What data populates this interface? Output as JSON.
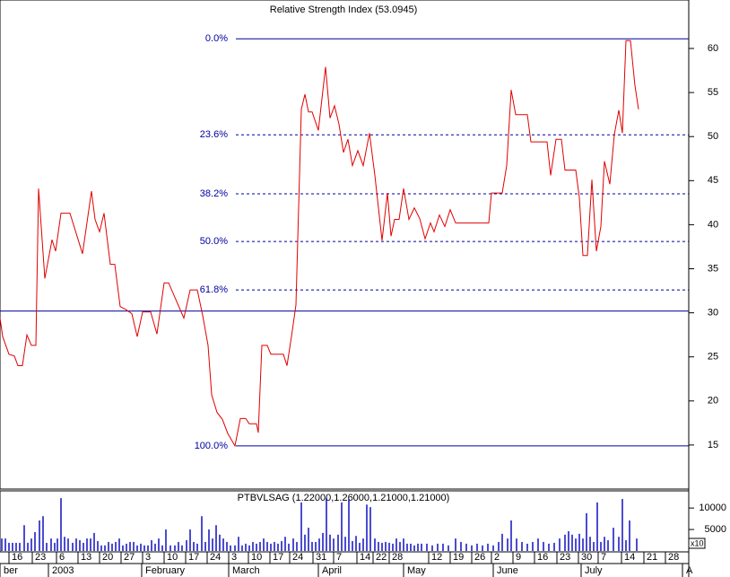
{
  "chart_data": [
    {
      "type": "line",
      "title": "Relative Strength Index (53.0945)",
      "color": "#e00000",
      "xlim": [
        0,
        153.6
      ],
      "ylim": [
        10,
        65.5
      ],
      "yticks": [
        15,
        20,
        25,
        30,
        35,
        40,
        45,
        50,
        55,
        60
      ],
      "x": [
        0,
        0.6,
        2,
        3.2,
        4,
        5,
        6,
        7,
        8,
        8.6,
        10,
        11.6,
        12.4,
        13.6,
        15.6,
        18.4,
        20.4,
        21.2,
        22.2,
        23.2,
        24.6,
        25.6,
        26.8,
        28,
        29.4,
        30.6,
        31.8,
        33.6,
        35,
        36.6,
        37.6,
        41,
        42.4,
        44,
        45.2,
        46.4,
        47.2,
        48.4,
        49.6,
        50.8,
        52.4,
        53.6,
        54.8,
        55.6,
        57.2,
        57.6,
        58.4,
        59.6,
        60.4,
        63.2,
        64,
        65,
        66,
        67.2,
        68,
        68.8,
        69.6,
        71,
        72.6,
        73.6,
        74.6,
        75.6,
        76.6,
        77.6,
        78.6,
        79.8,
        81,
        82.4,
        83.6,
        85.2,
        86.4,
        87.2,
        88,
        89,
        90,
        91.2,
        92.4,
        93.6,
        94.8,
        96,
        96.8,
        98,
        99.2,
        100.4,
        101.6,
        104,
        109,
        109.6,
        112,
        113,
        114,
        115,
        117.6,
        118.4,
        122,
        122.8,
        124,
        125.2,
        126,
        128.4,
        129.2,
        130,
        131,
        132,
        133,
        134,
        134.8,
        136,
        137,
        138,
        138.8,
        139.6,
        140.6,
        141.6,
        142.4
      ],
      "values": [
        29.4,
        27.3,
        25.3,
        25.1,
        24.0,
        24.0,
        27.5,
        26.3,
        26.3,
        44.1,
        33.9,
        38.3,
        37.0,
        41.3,
        41.3,
        36.7,
        43.8,
        40.6,
        39.2,
        41.3,
        35.5,
        35.5,
        30.7,
        30.4,
        29.9,
        27.3,
        30.1,
        30.1,
        27.6,
        33.4,
        33.4,
        29.4,
        32.6,
        32.6,
        29.7,
        26.3,
        20.7,
        18.7,
        17.9,
        16.3,
        14.9,
        18.0,
        18.0,
        17.4,
        17.4,
        16.4,
        26.3,
        26.3,
        25.3,
        25.3,
        24.0,
        27.3,
        30.9,
        53.1,
        54.8,
        52.8,
        52.8,
        50.7,
        57.9,
        52.1,
        53.5,
        51.4,
        48.2,
        49.7,
        46.7,
        48.4,
        46.7,
        50.4,
        45.6,
        38.2,
        43.6,
        38.7,
        40.6,
        40.6,
        44.1,
        40.6,
        41.9,
        40.7,
        38.4,
        40.2,
        39.2,
        41.1,
        39.8,
        41.7,
        40.2,
        40.2,
        40.2,
        43.6,
        43.6,
        46.7,
        55.3,
        52.5,
        52.5,
        49.4,
        49.4,
        45.6,
        49.7,
        49.7,
        46.2,
        46.2,
        43.1,
        36.5,
        36.5,
        45.1,
        37.0,
        39.8,
        47.2,
        44.6,
        50.2,
        53.0,
        50.4,
        60.9,
        60.9,
        55.8,
        53.1
      ],
      "levels": [
        {
          "label": "0.0%",
          "value": 61.1
        },
        {
          "label": "23.6%",
          "value": 50.2
        },
        {
          "label": "38.2%",
          "value": 43.5
        },
        {
          "label": "50.0%",
          "value": 38.1
        },
        {
          "label": "61.8%",
          "value": 32.6
        },
        {
          "label": "100.0%",
          "value": 14.9
        }
      ],
      "level_color": "#0000a0",
      "reference_line": 30.2
    },
    {
      "type": "bar",
      "title": "PTBVLSAG (1.22000,1.26000,1.21000,1.21000)",
      "color": "#1010c0",
      "xlim": [
        0,
        153.6
      ],
      "ylim": [
        0,
        14000
      ],
      "yticks": [
        5000,
        10000
      ],
      "y_unit_label": "x10",
      "x": [
        0.4,
        1.2,
        2,
        2.8,
        3.6,
        4.4,
        5.4,
        6.2,
        7,
        7.8,
        8.8,
        9.6,
        10.4,
        11.4,
        12.2,
        12.8,
        13.6,
        14.4,
        15.2,
        16.2,
        17,
        17.8,
        18.6,
        19.4,
        20.2,
        21,
        21.8,
        22.6,
        23.4,
        24.2,
        25,
        25.8,
        26.6,
        27.4,
        28.2,
        29,
        29.8,
        30.6,
        31.4,
        32.2,
        33,
        33.8,
        34.6,
        35.4,
        36.2,
        37,
        38,
        39,
        39.8,
        40.6,
        41.6,
        42.4,
        43.2,
        44,
        45,
        45.8,
        46.6,
        47.4,
        48.2,
        49,
        49.8,
        50.6,
        51.4,
        52.4,
        53.2,
        54,
        54.8,
        55.6,
        56.4,
        57.2,
        58,
        58.8,
        59.6,
        60.4,
        61.2,
        62,
        62.8,
        63.6,
        64.4,
        65.4,
        66.2,
        67.2,
        68,
        68.8,
        69.6,
        70.4,
        71.2,
        72,
        72.8,
        73.6,
        74.4,
        75.4,
        76.2,
        77,
        77.8,
        78.6,
        79.4,
        80.2,
        81,
        81.8,
        82.6,
        83.6,
        84.4,
        85.2,
        86,
        86.8,
        87.6,
        88.4,
        89.2,
        90,
        90.8,
        91.6,
        92.4,
        93.2,
        94,
        95.2,
        96.4,
        97.6,
        98.8,
        100,
        101.6,
        102.8,
        104,
        105.2,
        106.4,
        107.6,
        108.8,
        110,
        111.2,
        112,
        113.2,
        114,
        115.2,
        116.4,
        117.6,
        118.8,
        120,
        121.2,
        122.4,
        123.6,
        124.8,
        126,
        126.8,
        127.6,
        128.4,
        129.2,
        130,
        130.8,
        131.6,
        132.4,
        133.2,
        134,
        134.8,
        135.6,
        136.8,
        138,
        138.8,
        139.6,
        140.4,
        142
      ],
      "values": [
        2900,
        2900,
        1900,
        1900,
        1900,
        1900,
        6000,
        1900,
        2900,
        4400,
        7100,
        8100,
        1900,
        2900,
        1900,
        2900,
        12300,
        3300,
        2900,
        1900,
        2900,
        2500,
        1900,
        2900,
        2900,
        4200,
        2300,
        1300,
        1300,
        2100,
        1700,
        2100,
        2900,
        1300,
        1700,
        2100,
        2100,
        1300,
        1700,
        1300,
        1300,
        2500,
        1700,
        2900,
        1300,
        5000,
        1300,
        1300,
        2100,
        1300,
        2500,
        5000,
        2100,
        1700,
        8100,
        2100,
        5000,
        2900,
        6000,
        3800,
        2900,
        2100,
        1300,
        1300,
        3300,
        1300,
        1700,
        1300,
        2100,
        1700,
        2100,
        2900,
        2100,
        1700,
        2100,
        1700,
        2300,
        3300,
        1700,
        2900,
        2100,
        11300,
        3800,
        5400,
        2100,
        2100,
        2900,
        4200,
        12300,
        3800,
        2900,
        3800,
        11300,
        3300,
        12100,
        2300,
        3500,
        1900,
        2900,
        10800,
        10200,
        2900,
        2100,
        1900,
        2100,
        1900,
        1700,
        2900,
        2100,
        2900,
        1700,
        1700,
        1300,
        1700,
        1700,
        1700,
        1300,
        1700,
        1700,
        1300,
        2900,
        2100,
        1700,
        1300,
        1700,
        1300,
        1700,
        1300,
        2100,
        4000,
        2900,
        7100,
        2900,
        2100,
        1700,
        2100,
        2900,
        2100,
        1700,
        1900,
        2900,
        3800,
        4600,
        3800,
        2900,
        4000,
        2900,
        8800,
        3300,
        2100,
        11300,
        2100,
        3300,
        2500,
        5400,
        3300,
        12100,
        2500,
        7100,
        2900
      ],
      "xticks": [
        {
          "value": 2,
          "label": "16"
        },
        {
          "value": 7.2,
          "label": "23"
        },
        {
          "value": 12.6,
          "label": "6"
        },
        {
          "value": 17.4,
          "label": "13"
        },
        {
          "value": 22.2,
          "label": "20"
        },
        {
          "value": 27,
          "label": "27"
        },
        {
          "value": 31.8,
          "label": "3"
        },
        {
          "value": 36.6,
          "label": "10"
        },
        {
          "value": 41.4,
          "label": "17"
        },
        {
          "value": 46.2,
          "label": "24"
        },
        {
          "value": 51,
          "label": "3"
        },
        {
          "value": 55.4,
          "label": "10"
        },
        {
          "value": 60.2,
          "label": "17"
        },
        {
          "value": 64.6,
          "label": "24"
        },
        {
          "value": 69.8,
          "label": "31"
        },
        {
          "value": 74.4,
          "label": "7"
        },
        {
          "value": 79.6,
          "label": "14"
        },
        {
          "value": 83.2,
          "label": "22"
        },
        {
          "value": 86.8,
          "label": "28"
        },
        {
          "value": 95.6,
          "label": "12"
        },
        {
          "value": 100.4,
          "label": "19"
        },
        {
          "value": 105.2,
          "label": "26"
        },
        {
          "value": 109.6,
          "label": "2"
        },
        {
          "value": 114.4,
          "label": "9"
        },
        {
          "value": 119.2,
          "label": "16"
        },
        {
          "value": 124.2,
          "label": "23"
        },
        {
          "value": 129,
          "label": "30"
        },
        {
          "value": 133.4,
          "label": "7"
        },
        {
          "value": 138.6,
          "label": "14"
        },
        {
          "value": 143.6,
          "label": "21"
        },
        {
          "value": 148.4,
          "label": "28"
        }
      ],
      "month_ticks": [
        {
          "value": 0,
          "label": "ber"
        },
        {
          "value": 10.8,
          "label": "2003"
        },
        {
          "value": 31.6,
          "label": "February"
        },
        {
          "value": 51,
          "label": "March"
        },
        {
          "value": 71,
          "label": "April"
        },
        {
          "value": 90,
          "label": "May"
        },
        {
          "value": 110,
          "label": "June"
        },
        {
          "value": 129.6,
          "label": "July"
        },
        {
          "value": 152.2,
          "label": "A"
        }
      ]
    }
  ]
}
